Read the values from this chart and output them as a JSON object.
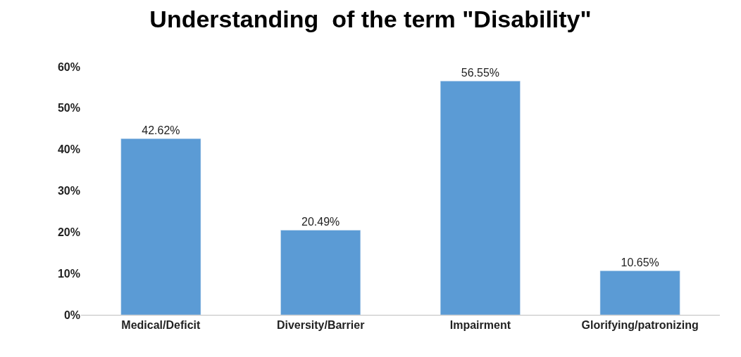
{
  "chart_data": {
    "type": "bar",
    "title": "Understanding  of the term \"Disability\"",
    "categories": [
      "Medical/Deficit",
      "Diversity/Barrier",
      "Impairment",
      "Glorifying/patronizing"
    ],
    "values": [
      42.62,
      20.49,
      56.55,
      10.65
    ],
    "value_labels": [
      "42.62%",
      "20.49%",
      "56.55%",
      "10.65%"
    ],
    "color": "#5b9bd5",
    "ylim": [
      0,
      60
    ],
    "yticks": [
      {
        "value": 0,
        "label": "0%"
      },
      {
        "value": 10,
        "label": "10%"
      },
      {
        "value": 20,
        "label": "20%"
      },
      {
        "value": 30,
        "label": "30%"
      },
      {
        "value": 40,
        "label": "40%"
      },
      {
        "value": 50,
        "label": "50%"
      },
      {
        "value": 60,
        "label": "60%"
      }
    ],
    "grid": false,
    "legend": false
  }
}
